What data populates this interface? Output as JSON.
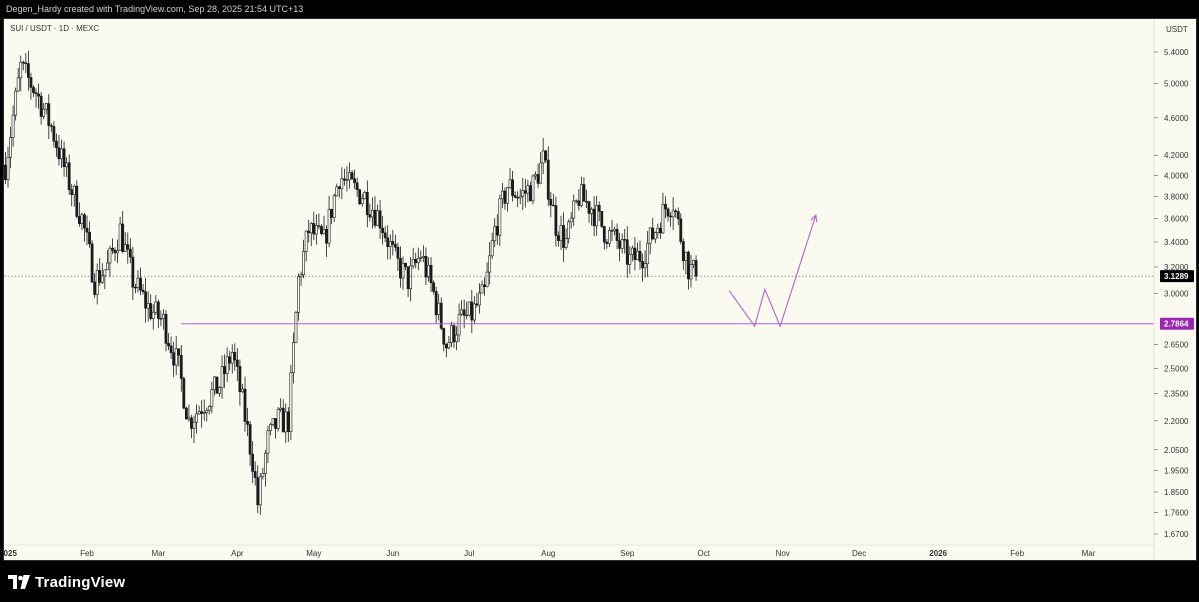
{
  "attribution": "Degen_Hardy created with TradingView.com, Sep 28, 2025 21:54 UTC+13",
  "branding": {
    "name": "TradingView",
    "logo_icon": "tradingview-logo-icon"
  },
  "colors": {
    "chart_bg": "#fafaf0",
    "candle": "#1b1b1b",
    "support_line": "#b262cf",
    "projection_path": "#b262cf",
    "last_price_label_bg": "#000000",
    "support_label_bg": "#9b27b0"
  },
  "chart_data": {
    "type": "candlestick",
    "title": "SUI / USDT · 1D · MEXC",
    "y_unit": "USDT",
    "y_scale": "log",
    "ylim": [
      1.6,
      6.0
    ],
    "y_ticks": [
      5.4,
      5.0,
      4.6,
      4.2,
      4.0,
      3.8,
      3.6,
      3.4,
      3.2,
      3.0,
      2.65,
      2.5,
      2.35,
      2.2,
      2.05,
      1.95,
      1.85,
      1.76,
      1.67
    ],
    "x_ticks": [
      {
        "label": "2025",
        "date": "2025-01-01"
      },
      {
        "label": "Feb",
        "date": "2025-02-01"
      },
      {
        "label": "Mar",
        "date": "2025-03-01"
      },
      {
        "label": "Apr",
        "date": "2025-04-01"
      },
      {
        "label": "May",
        "date": "2025-05-01"
      },
      {
        "label": "Jun",
        "date": "2025-06-01"
      },
      {
        "label": "Jul",
        "date": "2025-07-01"
      },
      {
        "label": "Aug",
        "date": "2025-08-01"
      },
      {
        "label": "Sep",
        "date": "2025-09-01"
      },
      {
        "label": "Oct",
        "date": "2025-10-01"
      },
      {
        "label": "Nov",
        "date": "2025-11-01"
      },
      {
        "label": "Dec",
        "date": "2025-12-01"
      },
      {
        "label": "2026",
        "date": "2026-01-01"
      },
      {
        "label": "Feb",
        "date": "2026-02-01"
      },
      {
        "label": "Mar",
        "date": "2026-03-01"
      }
    ],
    "last_price": 3.1289,
    "last_price_label": "3.1289",
    "support_level": 2.7864,
    "support_label": "2.7864",
    "close_series": [
      {
        "date": "2024-12-31",
        "close": 4.1
      },
      {
        "date": "2025-01-06",
        "close": 5.2
      },
      {
        "date": "2025-01-12",
        "close": 4.9
      },
      {
        "date": "2025-01-18",
        "close": 4.5
      },
      {
        "date": "2025-01-24",
        "close": 4.0
      },
      {
        "date": "2025-01-30",
        "close": 3.6
      },
      {
        "date": "2025-02-04",
        "close": 3.1
      },
      {
        "date": "2025-02-09",
        "close": 3.2
      },
      {
        "date": "2025-02-14",
        "close": 3.5
      },
      {
        "date": "2025-02-19",
        "close": 3.1
      },
      {
        "date": "2025-02-25",
        "close": 2.9
      },
      {
        "date": "2025-03-03",
        "close": 2.8
      },
      {
        "date": "2025-03-09",
        "close": 2.5
      },
      {
        "date": "2025-03-13",
        "close": 2.2
      },
      {
        "date": "2025-03-19",
        "close": 2.3
      },
      {
        "date": "2025-03-25",
        "close": 2.4
      },
      {
        "date": "2025-03-30",
        "close": 2.6
      },
      {
        "date": "2025-04-03",
        "close": 2.3
      },
      {
        "date": "2025-04-07",
        "close": 2.0
      },
      {
        "date": "2025-04-09",
        "close": 1.8
      },
      {
        "date": "2025-04-13",
        "close": 2.1
      },
      {
        "date": "2025-04-17",
        "close": 2.2
      },
      {
        "date": "2025-04-21",
        "close": 2.2
      },
      {
        "date": "2025-04-25",
        "close": 3.1
      },
      {
        "date": "2025-04-29",
        "close": 3.5
      },
      {
        "date": "2025-05-05",
        "close": 3.4
      },
      {
        "date": "2025-05-11",
        "close": 4.0
      },
      {
        "date": "2025-05-15",
        "close": 3.9
      },
      {
        "date": "2025-05-21",
        "close": 3.8
      },
      {
        "date": "2025-05-27",
        "close": 3.6
      },
      {
        "date": "2025-06-02",
        "close": 3.25
      },
      {
        "date": "2025-06-07",
        "close": 3.1
      },
      {
        "date": "2025-06-12",
        "close": 3.3
      },
      {
        "date": "2025-06-17",
        "close": 3.0
      },
      {
        "date": "2025-06-22",
        "close": 2.65
      },
      {
        "date": "2025-06-27",
        "close": 2.8
      },
      {
        "date": "2025-07-02",
        "close": 2.85
      },
      {
        "date": "2025-07-07",
        "close": 3.0
      },
      {
        "date": "2025-07-11",
        "close": 3.5
      },
      {
        "date": "2025-07-16",
        "close": 3.9
      },
      {
        "date": "2025-07-21",
        "close": 3.8
      },
      {
        "date": "2025-07-26",
        "close": 3.9
      },
      {
        "date": "2025-07-30",
        "close": 4.15
      },
      {
        "date": "2025-08-04",
        "close": 3.55
      },
      {
        "date": "2025-08-08",
        "close": 3.4
      },
      {
        "date": "2025-08-13",
        "close": 3.8
      },
      {
        "date": "2025-08-18",
        "close": 3.7
      },
      {
        "date": "2025-08-23",
        "close": 3.5
      },
      {
        "date": "2025-08-28",
        "close": 3.4
      },
      {
        "date": "2025-09-02",
        "close": 3.25
      },
      {
        "date": "2025-09-07",
        "close": 3.3
      },
      {
        "date": "2025-09-12",
        "close": 3.5
      },
      {
        "date": "2025-09-16",
        "close": 3.7
      },
      {
        "date": "2025-09-19",
        "close": 3.75
      },
      {
        "date": "2025-09-22",
        "close": 3.45
      },
      {
        "date": "2025-09-25",
        "close": 3.2
      },
      {
        "date": "2025-09-28",
        "close": 3.13
      }
    ],
    "projection_path": [
      {
        "date": "2025-10-11",
        "price": 3.02
      },
      {
        "date": "2025-10-21",
        "price": 2.77
      },
      {
        "date": "2025-10-25",
        "price": 3.03
      },
      {
        "date": "2025-10-31",
        "price": 2.77
      },
      {
        "date": "2025-11-14",
        "price": 3.63
      }
    ],
    "grid": false,
    "legend": "none"
  }
}
